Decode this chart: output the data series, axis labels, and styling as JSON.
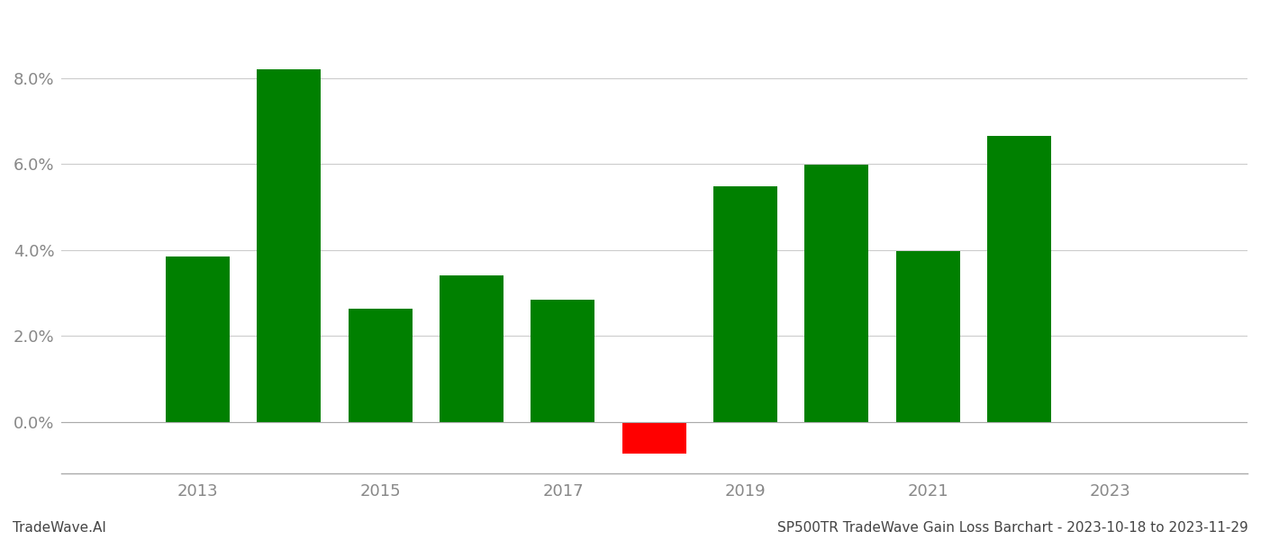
{
  "years": [
    2013,
    2014,
    2015,
    2016,
    2017,
    2018,
    2019,
    2020,
    2021,
    2022
  ],
  "values": [
    0.0385,
    0.082,
    0.0263,
    0.034,
    0.0283,
    -0.0075,
    0.0548,
    0.0598,
    0.0397,
    0.0665
  ],
  "colors": [
    "#008000",
    "#008000",
    "#008000",
    "#008000",
    "#008000",
    "#ff0000",
    "#008000",
    "#008000",
    "#008000",
    "#008000"
  ],
  "background_color": "#ffffff",
  "grid_color": "#cccccc",
  "ylim": [
    -0.012,
    0.095
  ],
  "xticks": [
    2013,
    2015,
    2017,
    2019,
    2021,
    2023
  ],
  "yticks": [
    0.0,
    0.02,
    0.04,
    0.06,
    0.08
  ],
  "xlabel_color": "#888888",
  "ylabel_color": "#888888",
  "footer_left": "TradeWave.AI",
  "footer_right": "SP500TR TradeWave Gain Loss Barchart - 2023-10-18 to 2023-11-29",
  "bar_width": 0.7
}
